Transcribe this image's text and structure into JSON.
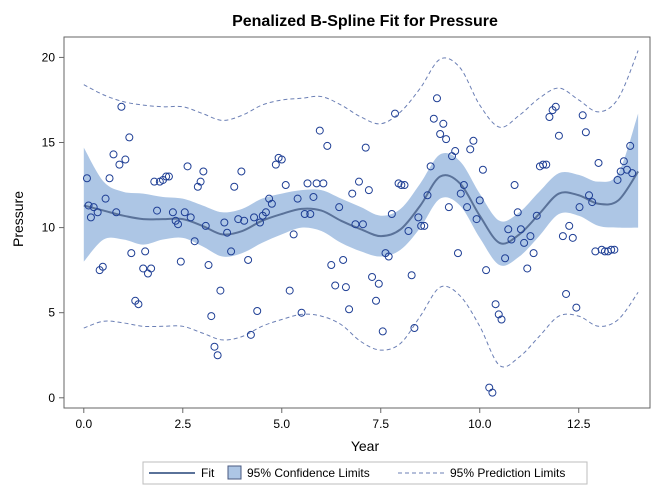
{
  "chart_data": {
    "type": "scatter",
    "title": "Penalized B-Spline Fit for Pressure",
    "xlabel": "Year",
    "ylabel": "Pressure",
    "xlim": [
      -0.5,
      14.3
    ],
    "ylim": [
      -0.6,
      21.2
    ],
    "xticks": [
      0.0,
      2.5,
      5.0,
      7.5,
      10.0,
      12.5
    ],
    "xtick_labels": [
      "0.0",
      "2.5",
      "5.0",
      "7.5",
      "10.0",
      "12.5"
    ],
    "yticks": [
      0,
      5,
      10,
      15,
      20
    ],
    "ytick_labels": [
      "0",
      "5",
      "10",
      "15",
      "20"
    ],
    "colors": {
      "fit": "#5a7299",
      "band_fill": "#adc6e5",
      "prediction": "#6b7fb5",
      "marker": "#1f3f95",
      "axis": "#666666"
    },
    "points": [
      [
        0.08,
        12.9
      ],
      [
        0.12,
        11.3
      ],
      [
        0.18,
        10.6
      ],
      [
        0.25,
        11.2
      ],
      [
        0.35,
        10.9
      ],
      [
        0.4,
        7.5
      ],
      [
        0.48,
        7.7
      ],
      [
        0.55,
        11.7
      ],
      [
        0.65,
        12.9
      ],
      [
        0.75,
        14.3
      ],
      [
        0.82,
        10.9
      ],
      [
        0.9,
        13.7
      ],
      [
        0.95,
        17.1
      ],
      [
        1.05,
        14.0
      ],
      [
        1.15,
        15.3
      ],
      [
        1.2,
        8.5
      ],
      [
        1.3,
        5.7
      ],
      [
        1.38,
        5.5
      ],
      [
        1.5,
        7.6
      ],
      [
        1.55,
        8.6
      ],
      [
        1.62,
        7.3
      ],
      [
        1.7,
        7.6
      ],
      [
        1.78,
        12.7
      ],
      [
        1.85,
        11.0
      ],
      [
        1.92,
        12.7
      ],
      [
        2.0,
        12.8
      ],
      [
        2.08,
        13.0
      ],
      [
        2.15,
        13.0
      ],
      [
        2.25,
        10.9
      ],
      [
        2.32,
        10.4
      ],
      [
        2.38,
        10.2
      ],
      [
        2.45,
        8.0
      ],
      [
        2.55,
        10.9
      ],
      [
        2.62,
        13.6
      ],
      [
        2.7,
        10.6
      ],
      [
        2.8,
        9.2
      ],
      [
        2.88,
        12.4
      ],
      [
        2.95,
        12.7
      ],
      [
        3.02,
        13.3
      ],
      [
        3.08,
        10.1
      ],
      [
        3.15,
        7.8
      ],
      [
        3.22,
        4.8
      ],
      [
        3.3,
        3.0
      ],
      [
        3.38,
        2.5
      ],
      [
        3.45,
        6.3
      ],
      [
        3.55,
        10.3
      ],
      [
        3.62,
        9.7
      ],
      [
        3.72,
        8.6
      ],
      [
        3.8,
        12.4
      ],
      [
        3.9,
        10.5
      ],
      [
        3.98,
        13.3
      ],
      [
        4.05,
        10.4
      ],
      [
        4.15,
        8.1
      ],
      [
        4.22,
        3.7
      ],
      [
        4.3,
        10.6
      ],
      [
        4.38,
        5.1
      ],
      [
        4.45,
        10.3
      ],
      [
        4.52,
        10.7
      ],
      [
        4.6,
        10.9
      ],
      [
        4.68,
        11.7
      ],
      [
        4.75,
        11.4
      ],
      [
        4.85,
        13.7
      ],
      [
        4.92,
        14.1
      ],
      [
        5.0,
        14.0
      ],
      [
        5.1,
        12.5
      ],
      [
        5.2,
        6.3
      ],
      [
        5.3,
        9.6
      ],
      [
        5.4,
        11.7
      ],
      [
        5.5,
        5.0
      ],
      [
        5.58,
        10.8
      ],
      [
        5.65,
        12.6
      ],
      [
        5.72,
        10.8
      ],
      [
        5.8,
        11.8
      ],
      [
        5.88,
        12.6
      ],
      [
        5.96,
        15.7
      ],
      [
        6.05,
        12.6
      ],
      [
        6.15,
        14.8
      ],
      [
        6.25,
        7.8
      ],
      [
        6.35,
        6.6
      ],
      [
        6.45,
        11.2
      ],
      [
        6.55,
        8.1
      ],
      [
        6.62,
        6.5
      ],
      [
        6.7,
        5.2
      ],
      [
        6.78,
        12.0
      ],
      [
        6.86,
        10.2
      ],
      [
        6.95,
        12.7
      ],
      [
        7.05,
        10.2
      ],
      [
        7.12,
        14.7
      ],
      [
        7.2,
        12.2
      ],
      [
        7.28,
        7.1
      ],
      [
        7.38,
        5.7
      ],
      [
        7.45,
        6.7
      ],
      [
        7.55,
        3.9
      ],
      [
        7.62,
        8.5
      ],
      [
        7.7,
        8.3
      ],
      [
        7.78,
        10.8
      ],
      [
        7.86,
        16.7
      ],
      [
        7.95,
        12.6
      ],
      [
        8.02,
        12.5
      ],
      [
        8.1,
        12.5
      ],
      [
        8.2,
        9.8
      ],
      [
        8.28,
        7.2
      ],
      [
        8.35,
        4.1
      ],
      [
        8.45,
        10.6
      ],
      [
        8.52,
        10.1
      ],
      [
        8.6,
        10.1
      ],
      [
        8.68,
        11.9
      ],
      [
        8.76,
        13.6
      ],
      [
        8.84,
        16.4
      ],
      [
        8.92,
        17.6
      ],
      [
        9.0,
        15.5
      ],
      [
        9.08,
        16.1
      ],
      [
        9.15,
        15.2
      ],
      [
        9.22,
        11.2
      ],
      [
        9.3,
        14.2
      ],
      [
        9.38,
        14.5
      ],
      [
        9.45,
        8.5
      ],
      [
        9.52,
        12.0
      ],
      [
        9.6,
        12.5
      ],
      [
        9.68,
        11.2
      ],
      [
        9.76,
        14.6
      ],
      [
        9.84,
        15.1
      ],
      [
        9.92,
        10.5
      ],
      [
        10.0,
        11.6
      ],
      [
        10.08,
        13.4
      ],
      [
        10.16,
        7.5
      ],
      [
        10.24,
        0.6
      ],
      [
        10.32,
        0.3
      ],
      [
        10.4,
        5.5
      ],
      [
        10.48,
        4.9
      ],
      [
        10.55,
        4.6
      ],
      [
        10.64,
        8.2
      ],
      [
        10.72,
        9.9
      ],
      [
        10.8,
        9.3
      ],
      [
        10.88,
        12.5
      ],
      [
        10.96,
        10.9
      ],
      [
        11.04,
        9.9
      ],
      [
        11.12,
        9.1
      ],
      [
        11.2,
        7.6
      ],
      [
        11.28,
        9.5
      ],
      [
        11.36,
        8.5
      ],
      [
        11.44,
        10.7
      ],
      [
        11.52,
        13.6
      ],
      [
        11.6,
        13.7
      ],
      [
        11.68,
        13.7
      ],
      [
        11.76,
        16.5
      ],
      [
        11.84,
        16.9
      ],
      [
        11.92,
        17.1
      ],
      [
        12.0,
        15.4
      ],
      [
        12.1,
        9.5
      ],
      [
        12.18,
        6.1
      ],
      [
        12.26,
        10.1
      ],
      [
        12.35,
        9.4
      ],
      [
        12.44,
        5.3
      ],
      [
        12.52,
        11.2
      ],
      [
        12.6,
        16.6
      ],
      [
        12.68,
        15.6
      ],
      [
        12.76,
        11.9
      ],
      [
        12.84,
        11.5
      ],
      [
        12.92,
        8.6
      ],
      [
        13.0,
        13.8
      ],
      [
        13.08,
        8.7
      ],
      [
        13.16,
        8.6
      ],
      [
        13.24,
        8.6
      ],
      [
        13.32,
        8.7
      ],
      [
        13.4,
        8.7
      ],
      [
        13.48,
        12.8
      ],
      [
        13.56,
        13.3
      ],
      [
        13.64,
        13.9
      ],
      [
        13.72,
        13.4
      ],
      [
        13.8,
        14.8
      ],
      [
        13.85,
        13.2
      ]
    ],
    "series": [
      {
        "name": "Fit",
        "x": [
          0,
          0.5,
          1.0,
          1.5,
          2.0,
          2.5,
          3.0,
          3.5,
          4.0,
          4.5,
          5.0,
          5.5,
          6.0,
          6.5,
          7.0,
          7.5,
          8.0,
          8.5,
          9.0,
          9.5,
          10.0,
          10.5,
          11.0,
          11.5,
          12.0,
          12.5,
          13.0,
          13.5,
          14.0
        ],
        "y": [
          11.3,
          11.0,
          10.7,
          10.5,
          10.5,
          10.5,
          10.1,
          9.6,
          9.8,
          10.4,
          10.8,
          11.1,
          11.0,
          10.4,
          9.9,
          9.5,
          9.9,
          11.3,
          13.0,
          12.6,
          10.7,
          9.1,
          9.6,
          10.8,
          12.0,
          11.9,
          11.4,
          11.6,
          13.3
        ]
      },
      {
        "name": "95% Confidence Limits",
        "x": [
          0,
          0.5,
          1.0,
          1.5,
          2.0,
          2.5,
          3.0,
          3.5,
          4.0,
          4.5,
          5.0,
          5.5,
          6.0,
          6.5,
          7.0,
          7.5,
          8.0,
          8.5,
          9.0,
          9.5,
          10.0,
          10.5,
          11.0,
          11.5,
          12.0,
          12.5,
          13.0,
          13.5,
          14.0
        ],
        "lower": [
          8.0,
          9.3,
          9.3,
          9.0,
          9.3,
          9.4,
          8.9,
          8.3,
          8.5,
          9.1,
          9.6,
          10.0,
          9.8,
          9.1,
          8.6,
          8.3,
          8.7,
          10.0,
          11.7,
          11.3,
          9.4,
          7.8,
          8.3,
          9.5,
          10.8,
          10.7,
          10.1,
          10.0,
          10.0
        ],
        "upper": [
          14.7,
          12.7,
          12.1,
          12.0,
          11.8,
          11.7,
          11.3,
          10.9,
          11.1,
          11.7,
          12.0,
          12.2,
          12.2,
          11.7,
          11.2,
          10.7,
          11.1,
          12.6,
          14.3,
          13.9,
          12.0,
          10.4,
          10.9,
          12.1,
          13.2,
          13.1,
          12.7,
          13.2,
          16.7
        ]
      },
      {
        "name": "95% Prediction Limits",
        "x": [
          0,
          0.5,
          1.0,
          1.5,
          2.0,
          2.5,
          3.0,
          3.5,
          4.0,
          4.5,
          5.0,
          5.5,
          6.0,
          6.5,
          7.0,
          7.5,
          8.0,
          8.5,
          9.0,
          9.5,
          10.0,
          10.5,
          11.0,
          11.5,
          12.0,
          12.5,
          13.0,
          13.5,
          14.0
        ],
        "lower": [
          4.1,
          4.5,
          4.4,
          4.2,
          4.2,
          4.2,
          3.8,
          3.4,
          3.6,
          4.2,
          4.6,
          4.9,
          4.8,
          4.3,
          3.3,
          2.8,
          3.2,
          4.8,
          6.5,
          6.0,
          4.2,
          1.9,
          2.4,
          3.6,
          4.8,
          4.8,
          4.2,
          4.6,
          6.2
        ],
        "upper": [
          18.4,
          17.8,
          17.4,
          17.2,
          17.1,
          17.1,
          16.7,
          16.3,
          16.6,
          17.2,
          17.5,
          17.6,
          17.7,
          17.2,
          16.5,
          16.1,
          16.8,
          18.2,
          19.9,
          19.4,
          17.2,
          15.9,
          16.6,
          17.6,
          18.2,
          17.5,
          16.8,
          17.6,
          20.4
        ]
      }
    ],
    "legend": {
      "placement": "bottom",
      "items": [
        "Fit",
        "95% Confidence Limits",
        "95% Prediction Limits"
      ]
    }
  }
}
